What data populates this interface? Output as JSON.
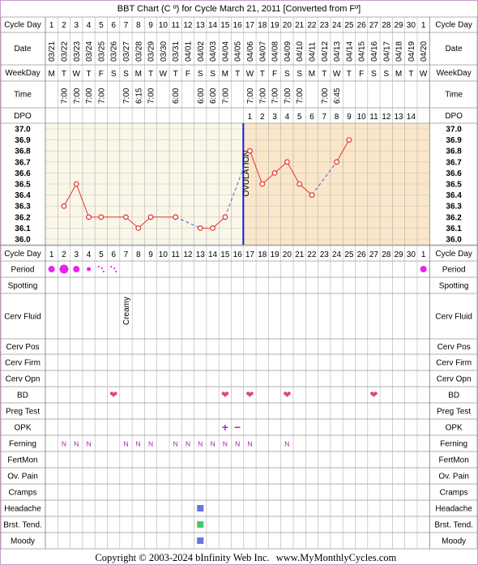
{
  "title": "BBT Chart (C º) for Cycle March 21, 2011  [Converted from Fº]",
  "footer": {
    "copyright": "Copyright © 2003-2024 bInfinity Web Inc.",
    "site": "www.MyMonthlyCycles.com"
  },
  "row_labels": {
    "cycle_day": "Cycle Day",
    "date": "Date",
    "weekday": "WeekDay",
    "time": "Time",
    "dpo": "DPO",
    "period": "Period",
    "spotting": "Spotting",
    "cerv_fluid": "Cerv Fluid",
    "cerv_pos": "Cerv Pos",
    "cerv_firm": "Cerv Firm",
    "cerv_opn": "Cerv Opn",
    "bd": "BD",
    "preg_test": "Preg Test",
    "opk": "OPK",
    "ferning": "Ferning",
    "fertmon": "FertMon",
    "ov_pain": "Ov. Pain",
    "cramps": "Cramps",
    "headache": "Headache",
    "brst_tend": "Brst. Tend.",
    "moody": "Moody"
  },
  "days": [
    "1",
    "2",
    "3",
    "4",
    "5",
    "6",
    "7",
    "8",
    "9",
    "10",
    "11",
    "12",
    "13",
    "14",
    "15",
    "16",
    "17",
    "18",
    "19",
    "20",
    "21",
    "22",
    "23",
    "24",
    "25",
    "26",
    "27",
    "28",
    "29",
    "30",
    "1"
  ],
  "dates": [
    "03/21",
    "03/22",
    "03/23",
    "03/24",
    "03/25",
    "03/26",
    "03/27",
    "03/28",
    "03/29",
    "03/30",
    "03/31",
    "04/01",
    "04/02",
    "04/03",
    "04/04",
    "04/05",
    "04/06",
    "04/07",
    "04/08",
    "04/09",
    "04/10",
    "04/11",
    "04/12",
    "04/13",
    "04/14",
    "04/15",
    "04/16",
    "04/17",
    "04/18",
    "04/19",
    "04/20"
  ],
  "weekdays": [
    "M",
    "T",
    "W",
    "T",
    "F",
    "S",
    "S",
    "M",
    "T",
    "W",
    "T",
    "F",
    "S",
    "S",
    "M",
    "T",
    "W",
    "T",
    "F",
    "S",
    "S",
    "M",
    "T",
    "W",
    "T",
    "F",
    "S",
    "S",
    "M",
    "T",
    "W"
  ],
  "times": [
    "",
    "7:00",
    "7:00",
    "7:00",
    "7:00",
    "",
    "7:00",
    "6:15",
    "7:00",
    "",
    "6:00",
    "",
    "6:00",
    "6:00",
    "7:00",
    "",
    "7:00",
    "7:00",
    "7:00",
    "7:00",
    "7:00",
    "",
    "7:00",
    "6:45",
    "",
    "",
    "",
    "",
    "",
    "",
    ""
  ],
  "dpo": [
    "",
    "",
    "",
    "",
    "",
    "",
    "",
    "",
    "",
    "",
    "",
    "",
    "",
    "",
    "",
    "",
    "1",
    "2",
    "3",
    "4",
    "5",
    "6",
    "7",
    "8",
    "9",
    "10",
    "11",
    "12",
    "13",
    "14",
    ""
  ],
  "ovulation_label": "OVULATION",
  "ovulation_after_day": 16,
  "colors": {
    "frame": "#cc99cc",
    "grid": "#999999",
    "pre_bg": "#fbf7e8",
    "post_bg": "#fae7c9",
    "temp_line": "#e23333",
    "dashed_line": "#4a5ee6",
    "ovulation_line": "#1420d6",
    "period_dot": "#ee22ee",
    "heart": "#dd4488",
    "ferning_n": "#aa22aa",
    "opk": "#9933cc",
    "symptom_blue": "#6677dd",
    "symptom_green": "#44cc66"
  },
  "chart_data": {
    "type": "line",
    "title": "BBT Chart (C º) for Cycle March 21, 2011  [Converted from Fº]",
    "xlabel": "Cycle Day",
    "ylabel": "",
    "ylim": [
      36.0,
      37.0
    ],
    "yticks": [
      "37.0",
      "36.9",
      "36.8",
      "36.7",
      "36.6",
      "36.5",
      "36.4",
      "36.3",
      "36.2",
      "36.1",
      "36.0"
    ],
    "x": [
      2,
      3,
      4,
      5,
      7,
      8,
      9,
      11,
      13,
      14,
      15,
      17,
      18,
      19,
      20,
      21,
      22,
      24,
      25
    ],
    "temps": [
      36.3,
      36.5,
      36.2,
      36.2,
      36.2,
      36.1,
      36.2,
      36.2,
      36.1,
      36.1,
      36.2,
      36.8,
      36.5,
      36.6,
      36.7,
      36.5,
      36.4,
      36.7,
      36.9
    ],
    "dashed_gaps": [
      [
        11,
        13
      ],
      [
        15,
        17
      ],
      [
        22,
        24
      ]
    ],
    "ovulation_day": 16
  },
  "observations": {
    "period": [
      {
        "day": 1,
        "level": "medium"
      },
      {
        "day": 2,
        "level": "heavy"
      },
      {
        "day": 3,
        "level": "medium"
      },
      {
        "day": 4,
        "level": "light"
      },
      {
        "day": 5,
        "level": "spotting"
      },
      {
        "day": 6,
        "level": "spotting"
      },
      {
        "day": 31,
        "level": "medium"
      }
    ],
    "cerv_fluid": [
      {
        "day": 7,
        "text": "Creamy"
      }
    ],
    "bd_days": [
      6,
      15,
      17,
      20,
      27
    ],
    "opk": [
      {
        "day": 15,
        "symbol": "+"
      },
      {
        "day": 16,
        "symbol": "−"
      }
    ],
    "ferning": [
      {
        "day": 2,
        "text": "N"
      },
      {
        "day": 3,
        "text": "N"
      },
      {
        "day": 4,
        "text": "N"
      },
      {
        "day": 7,
        "text": "N"
      },
      {
        "day": 8,
        "text": "N"
      },
      {
        "day": 9,
        "text": "N"
      },
      {
        "day": 11,
        "text": "N"
      },
      {
        "day": 12,
        "text": "N"
      },
      {
        "day": 13,
        "text": "N"
      },
      {
        "day": 14,
        "text": "N"
      },
      {
        "day": 15,
        "text": "N"
      },
      {
        "day": 16,
        "text": "N"
      },
      {
        "day": 17,
        "text": "N"
      },
      {
        "day": 20,
        "text": "N"
      }
    ],
    "headache": [
      13
    ],
    "brst_tend": [
      13
    ],
    "moody": [
      13
    ]
  }
}
